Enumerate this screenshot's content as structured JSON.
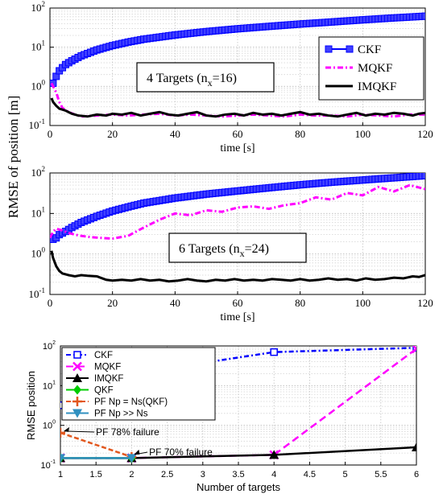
{
  "shared_ylabel": "RMSE of position [m]",
  "chart_data": [
    {
      "type": "line",
      "xlabel": "time [s]",
      "ylabel": "",
      "xlim": [
        0,
        120
      ],
      "ylim": [
        0.1,
        100
      ],
      "yscale": "log",
      "grid": true,
      "xticks": [
        "0",
        "20",
        "40",
        "60",
        "80",
        "100",
        "120"
      ],
      "yticks": [
        {
          "base": "10",
          "exp": "-1"
        },
        {
          "base": "10",
          "exp": "0"
        },
        {
          "base": "10",
          "exp": "1"
        },
        {
          "base": "10",
          "exp": "2"
        }
      ],
      "annotation": {
        "pre": "4 Targets (n",
        "sub": "x",
        "post": "=16)"
      },
      "legend_placement": "top-right",
      "series": [
        {
          "name": "CKF",
          "color": "#0000ff",
          "style": "square-markers",
          "x": [
            1,
            2,
            3,
            5,
            7,
            10,
            15,
            20,
            25,
            30,
            40,
            50,
            60,
            70,
            80,
            90,
            100,
            110,
            120
          ],
          "y": [
            1.2,
            1.8,
            2.5,
            3.6,
            4.5,
            6,
            8.5,
            11,
            13.5,
            16,
            20.5,
            25,
            29.5,
            34,
            39,
            44,
            50,
            56,
            62
          ]
        },
        {
          "name": "MQKF",
          "color": "#ff00ff",
          "style": "dash-dot",
          "x": [
            0.5,
            1,
            2,
            3,
            4,
            6,
            8,
            10,
            15,
            20,
            25,
            30,
            35,
            40,
            45,
            50,
            55,
            60,
            65,
            70,
            75,
            80,
            85,
            90,
            95,
            100,
            105,
            110,
            115,
            120
          ],
          "y": [
            1.2,
            1.0,
            0.7,
            0.4,
            0.28,
            0.22,
            0.19,
            0.17,
            0.18,
            0.19,
            0.18,
            0.19,
            0.2,
            0.18,
            0.19,
            0.18,
            0.17,
            0.18,
            0.19,
            0.18,
            0.17,
            0.19,
            0.18,
            0.18,
            0.17,
            0.19,
            0.18,
            0.17,
            0.19,
            0.19
          ]
        },
        {
          "name": "IMQKF",
          "color": "#000000",
          "style": "solid",
          "x": [
            0.5,
            1,
            2,
            3,
            5,
            7,
            9,
            12,
            15,
            18,
            20,
            23,
            26,
            29,
            32,
            35,
            38,
            41,
            44,
            47,
            50,
            53,
            56,
            59,
            62,
            65,
            68,
            71,
            74,
            77,
            80,
            83,
            86,
            89,
            92,
            95,
            98,
            101,
            104,
            107,
            110,
            113,
            116,
            118,
            120
          ],
          "y": [
            0.5,
            0.4,
            0.32,
            0.27,
            0.24,
            0.2,
            0.18,
            0.17,
            0.19,
            0.18,
            0.2,
            0.19,
            0.21,
            0.18,
            0.2,
            0.22,
            0.19,
            0.18,
            0.2,
            0.22,
            0.18,
            0.17,
            0.19,
            0.2,
            0.18,
            0.21,
            0.19,
            0.2,
            0.18,
            0.2,
            0.22,
            0.19,
            0.2,
            0.18,
            0.17,
            0.19,
            0.21,
            0.18,
            0.2,
            0.19,
            0.21,
            0.2,
            0.18,
            0.2,
            0.21
          ]
        }
      ]
    },
    {
      "type": "line",
      "xlabel": "time [s]",
      "ylabel": "",
      "xlim": [
        0,
        120
      ],
      "ylim": [
        0.1,
        100
      ],
      "yscale": "log",
      "grid": true,
      "xticks": [
        "0",
        "20",
        "40",
        "60",
        "80",
        "100",
        "120"
      ],
      "yticks": [
        {
          "base": "10",
          "exp": "-1"
        },
        {
          "base": "10",
          "exp": "0"
        },
        {
          "base": "10",
          "exp": "1"
        },
        {
          "base": "10",
          "exp": "2"
        }
      ],
      "annotation": {
        "pre": "6 Targets (n",
        "sub": "x",
        "post": "=24)"
      },
      "series": [
        {
          "name": "CKF",
          "color": "#0000ff",
          "style": "square-markers",
          "x": [
            0,
            1,
            2,
            3,
            5,
            7,
            10,
            15,
            20,
            25,
            30,
            40,
            50,
            60,
            70,
            80,
            90,
            100,
            110,
            120
          ],
          "y": [
            2.5,
            2.3,
            2.5,
            3,
            3.6,
            4.5,
            6,
            8.5,
            11.5,
            14.5,
            18,
            24,
            30,
            36,
            43,
            51,
            59,
            67,
            76,
            86
          ]
        },
        {
          "name": "MQKF",
          "color": "#ff00ff",
          "style": "dash-dot",
          "x": [
            0,
            1,
            2,
            4,
            6,
            8,
            10,
            13,
            16,
            20,
            25,
            30,
            35,
            40,
            45,
            50,
            55,
            60,
            65,
            70,
            75,
            80,
            85,
            90,
            95,
            100,
            105,
            110,
            115,
            120
          ],
          "y": [
            2.5,
            3.5,
            4.2,
            3.8,
            3.3,
            3.0,
            2.8,
            2.6,
            2.5,
            2.4,
            2.8,
            4.5,
            7,
            10,
            9,
            12,
            11,
            14,
            15,
            13,
            16,
            18,
            25,
            22,
            32,
            28,
            45,
            35,
            50,
            40
          ]
        },
        {
          "name": "IMQKF",
          "color": "#000000",
          "style": "solid",
          "x": [
            0.5,
            1,
            2,
            3,
            4,
            6,
            8,
            10,
            12,
            15,
            18,
            20,
            23,
            26,
            29,
            32,
            35,
            38,
            41,
            44,
            47,
            50,
            53,
            56,
            59,
            62,
            65,
            68,
            71,
            74,
            77,
            80,
            83,
            86,
            89,
            92,
            95,
            98,
            101,
            104,
            107,
            110,
            113,
            116,
            118,
            120
          ],
          "y": [
            1.2,
            0.8,
            0.5,
            0.38,
            0.33,
            0.3,
            0.28,
            0.3,
            0.29,
            0.28,
            0.23,
            0.22,
            0.23,
            0.22,
            0.24,
            0.22,
            0.23,
            0.21,
            0.22,
            0.24,
            0.22,
            0.21,
            0.23,
            0.22,
            0.24,
            0.22,
            0.23,
            0.22,
            0.24,
            0.23,
            0.22,
            0.24,
            0.22,
            0.23,
            0.25,
            0.23,
            0.24,
            0.22,
            0.25,
            0.23,
            0.24,
            0.26,
            0.25,
            0.28,
            0.27,
            0.3
          ]
        }
      ]
    },
    {
      "type": "line",
      "xlabel": "Number of targets",
      "ylabel": "RMSE position",
      "xlim": [
        1,
        6
      ],
      "ylim": [
        0.1,
        100
      ],
      "yscale": "log",
      "grid": true,
      "xticks": [
        "1",
        "1.5",
        "2",
        "2.5",
        "3",
        "3.5",
        "4",
        "4.5",
        "5",
        "5.5",
        "6"
      ],
      "yticks": [
        {
          "base": "10",
          "exp": "-1"
        },
        {
          "base": "10",
          "exp": "0"
        },
        {
          "base": "10",
          "exp": "1"
        },
        {
          "base": "10",
          "exp": "2"
        }
      ],
      "legend_placement": "top-left",
      "annotations": [
        "PF 78% failure",
        "PF 70% failure"
      ],
      "series": [
        {
          "name": "CKF",
          "color": "#0000ff",
          "x": [
            1,
            2,
            4,
            6
          ],
          "y": [
            3.2,
            20,
            70,
            90
          ]
        },
        {
          "name": "MQKF",
          "color": "#ff00ff",
          "x": [
            1,
            2,
            4,
            6
          ],
          "y": [
            0.15,
            0.15,
            0.18,
            85
          ]
        },
        {
          "name": "IMQKF",
          "color": "#000000",
          "x": [
            1,
            2,
            4,
            6
          ],
          "y": [
            0.15,
            0.15,
            0.18,
            0.28
          ]
        },
        {
          "name": "QKF",
          "color": "#00cc00",
          "x": [
            1,
            2
          ],
          "y": [
            0.15,
            0.15
          ]
        },
        {
          "name": "PF Np = Ns(QKF)",
          "color": "#e2571e",
          "x": [
            1,
            2
          ],
          "y": [
            0.65,
            0.16
          ]
        },
        {
          "name": "PF Np >> Ns",
          "color": "#3090c0",
          "x": [
            1,
            2
          ],
          "y": [
            0.15,
            0.15
          ]
        }
      ]
    }
  ]
}
